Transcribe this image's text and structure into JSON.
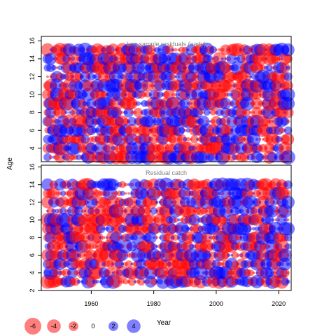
{
  "chart_data": [
    {
      "type": "scatter",
      "title": "Len sample residuals (early)",
      "xlim": [
        1944,
        2024
      ],
      "ylim": [
        2.5,
        16.5
      ],
      "ylabel": "Age",
      "yticks": [
        4,
        6,
        8,
        10,
        12,
        14,
        16
      ],
      "ages": [
        3,
        4,
        5,
        6,
        7,
        8,
        9,
        10,
        11,
        12,
        13,
        14,
        15
      ],
      "years": [
        1946,
        2023
      ]
    },
    {
      "type": "scatter",
      "title": "Residual catch",
      "xlim": [
        1944,
        2024
      ],
      "ylim": [
        2,
        16.2
      ],
      "yticks": [
        2,
        4,
        6,
        8,
        10,
        12,
        14,
        16
      ],
      "xticks": [
        1960,
        1980,
        2000,
        2020
      ],
      "xlabel": "Year",
      "ages": [
        3,
        4,
        5,
        6,
        7,
        8,
        9,
        10,
        11,
        12,
        13,
        14
      ],
      "years": [
        1946,
        2023
      ]
    }
  ],
  "ylabel": "Age",
  "xlabel": "Year",
  "legend": {
    "values": [
      -6,
      -4,
      -2,
      0,
      2,
      4
    ],
    "labels": [
      "-6",
      "-4",
      "-2",
      "0",
      "2",
      "4"
    ]
  },
  "colors": {
    "negative": "#ff0000",
    "positive": "#0000ff"
  }
}
